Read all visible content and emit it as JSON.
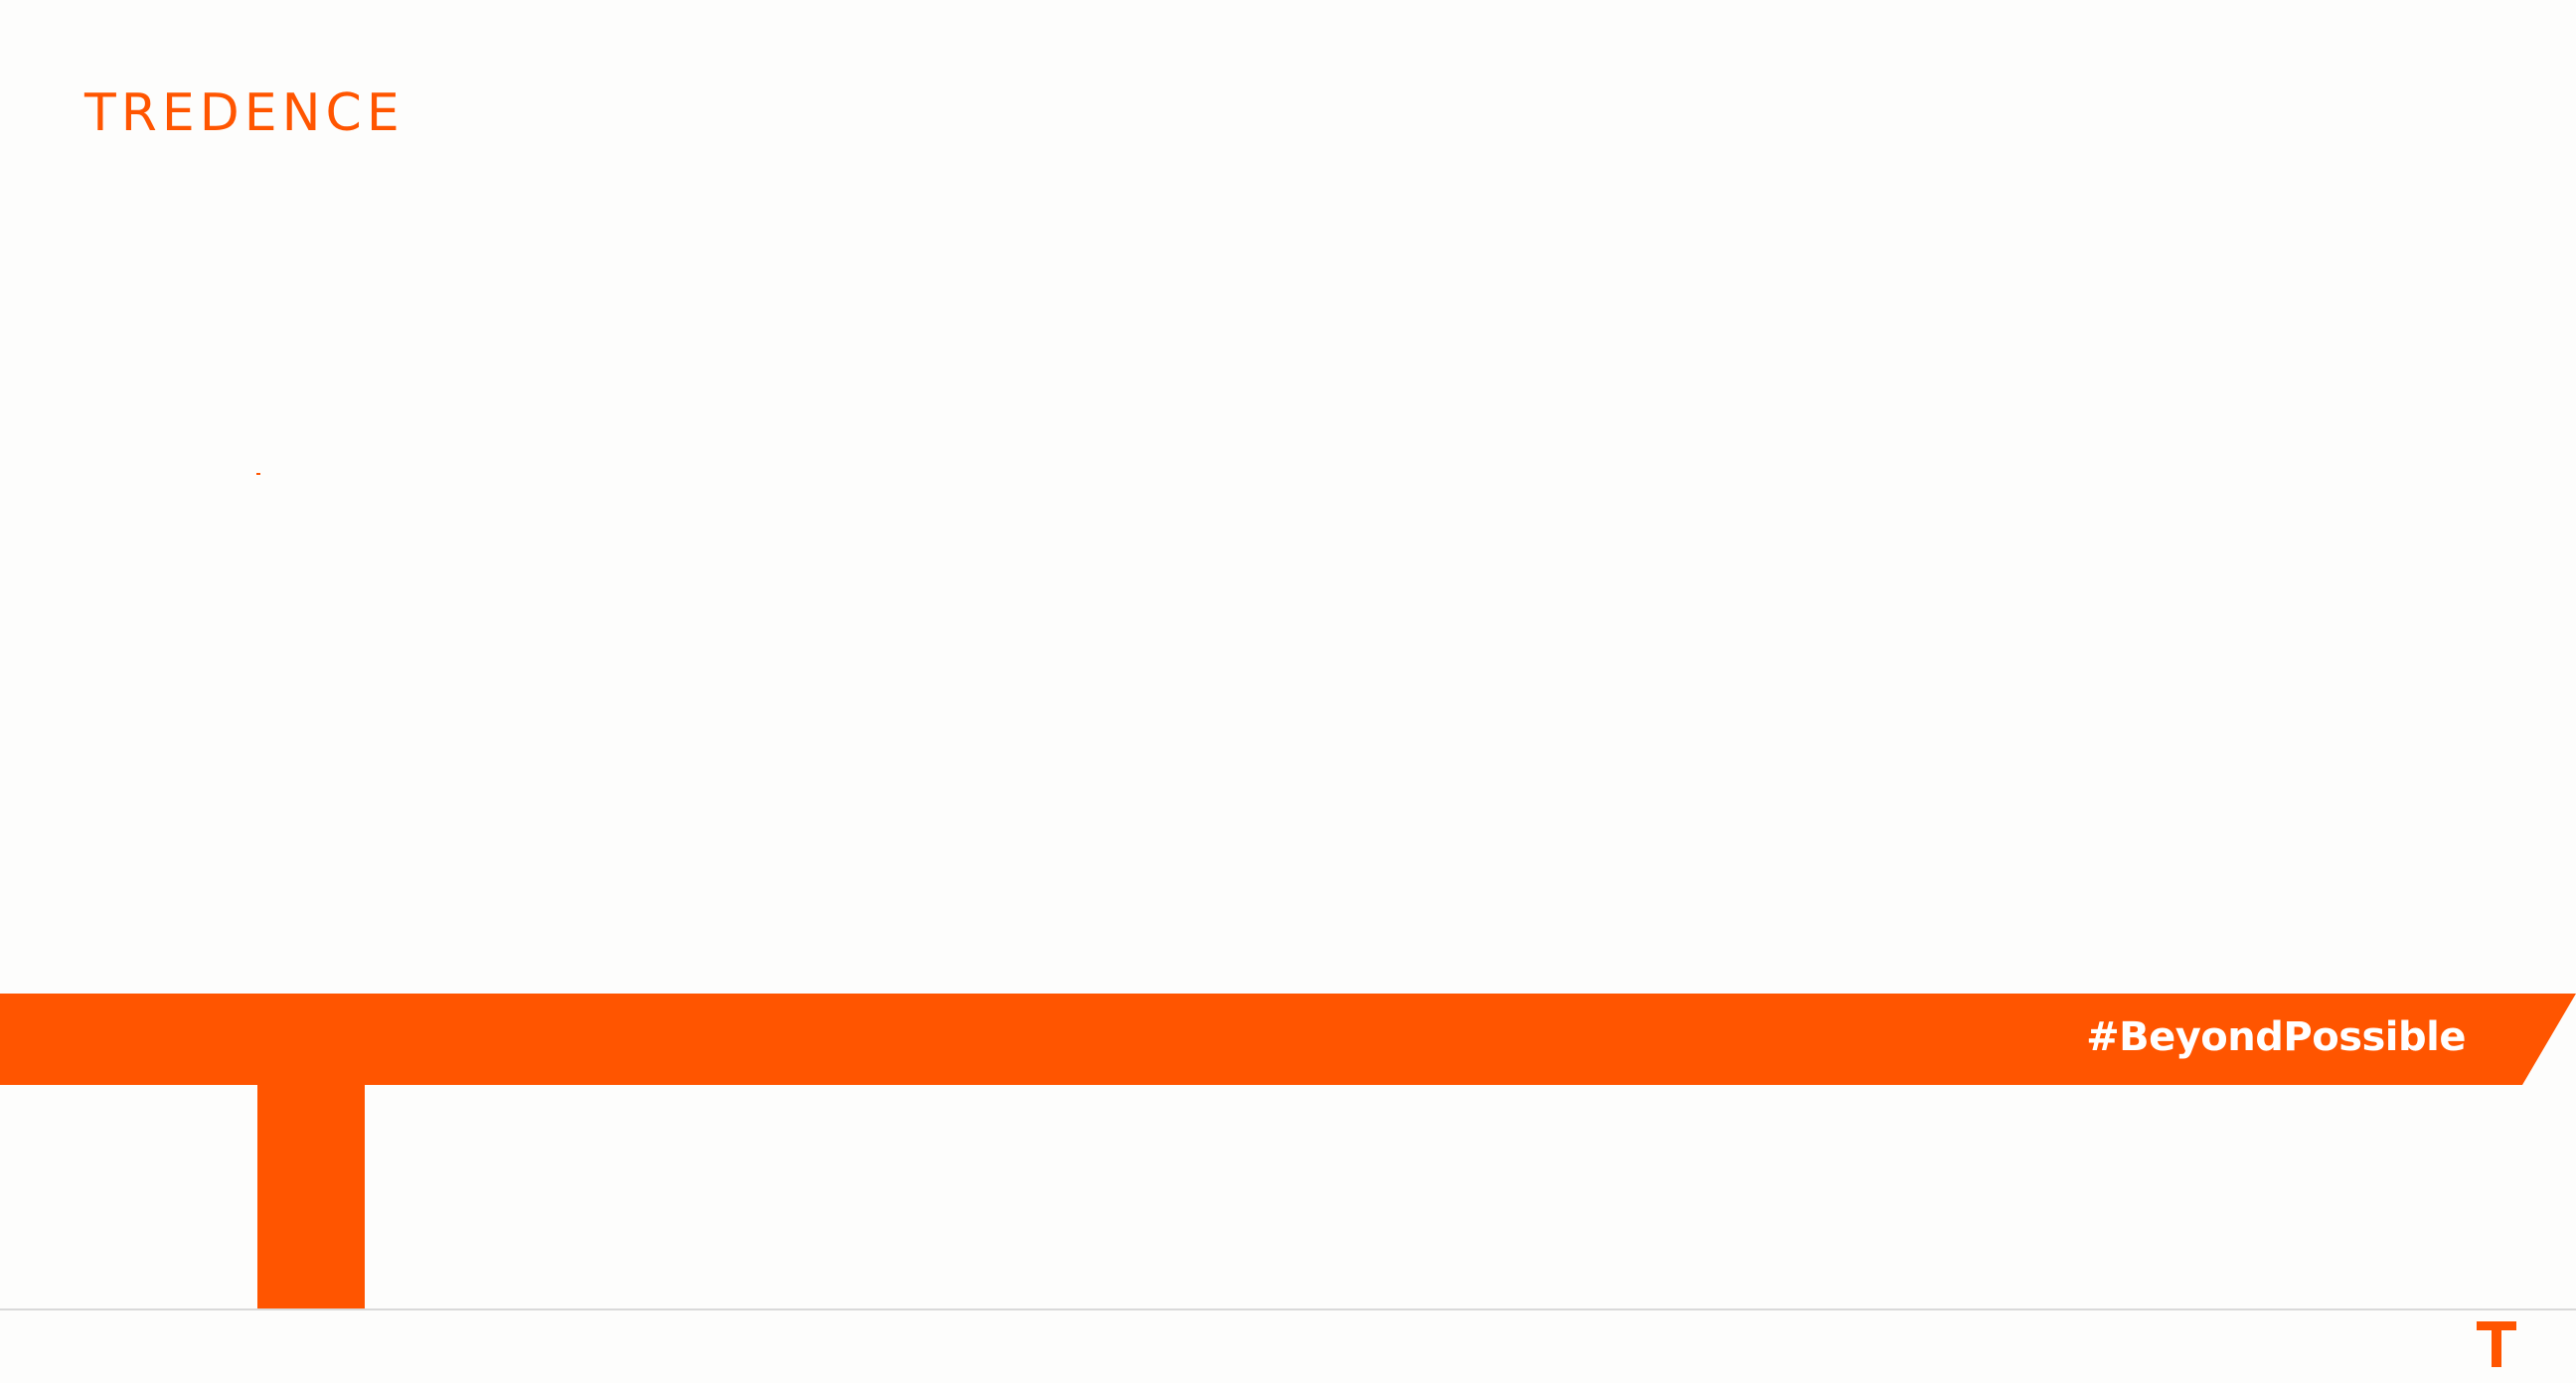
{
  "brand": {
    "logo_text": "TREDENCE",
    "tagline": "#BeyondPossible",
    "corner_mark": "T"
  },
  "colors": {
    "accent": "#ff5500",
    "background": "#fdfdfc",
    "tagline_text": "#ffffff",
    "divider": "#d9d9d9"
  },
  "icons": {
    "banner": "orange-t-banner-shape",
    "corner_mark": "tredence-t-icon"
  }
}
